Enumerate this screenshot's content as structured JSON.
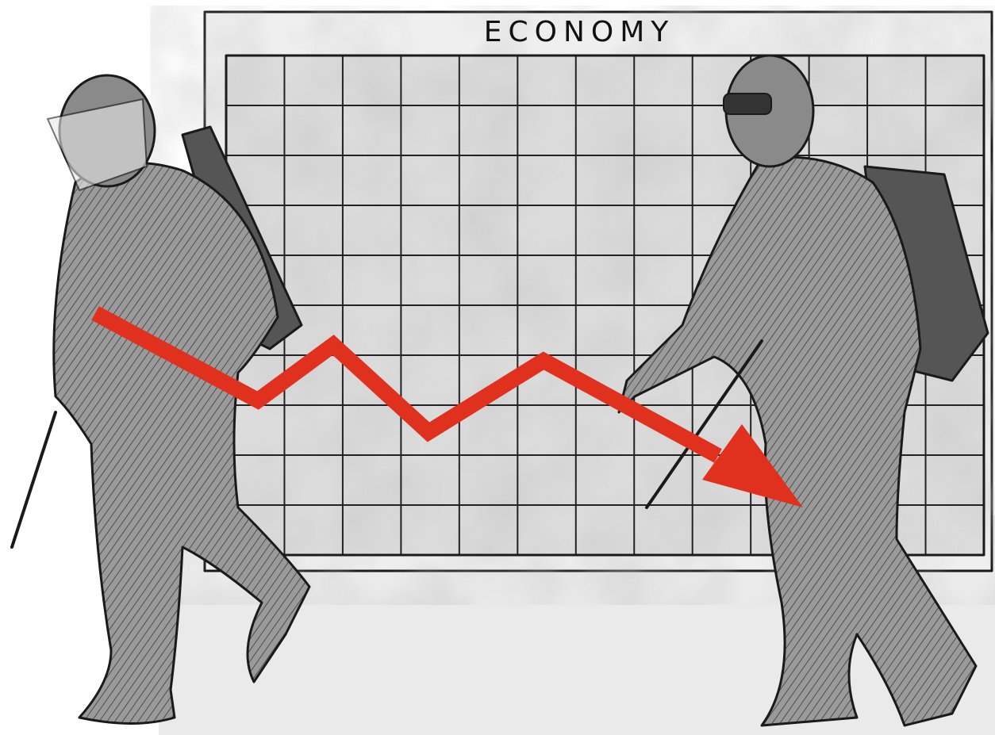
{
  "board": {
    "title": "ECONOMY"
  }
}
